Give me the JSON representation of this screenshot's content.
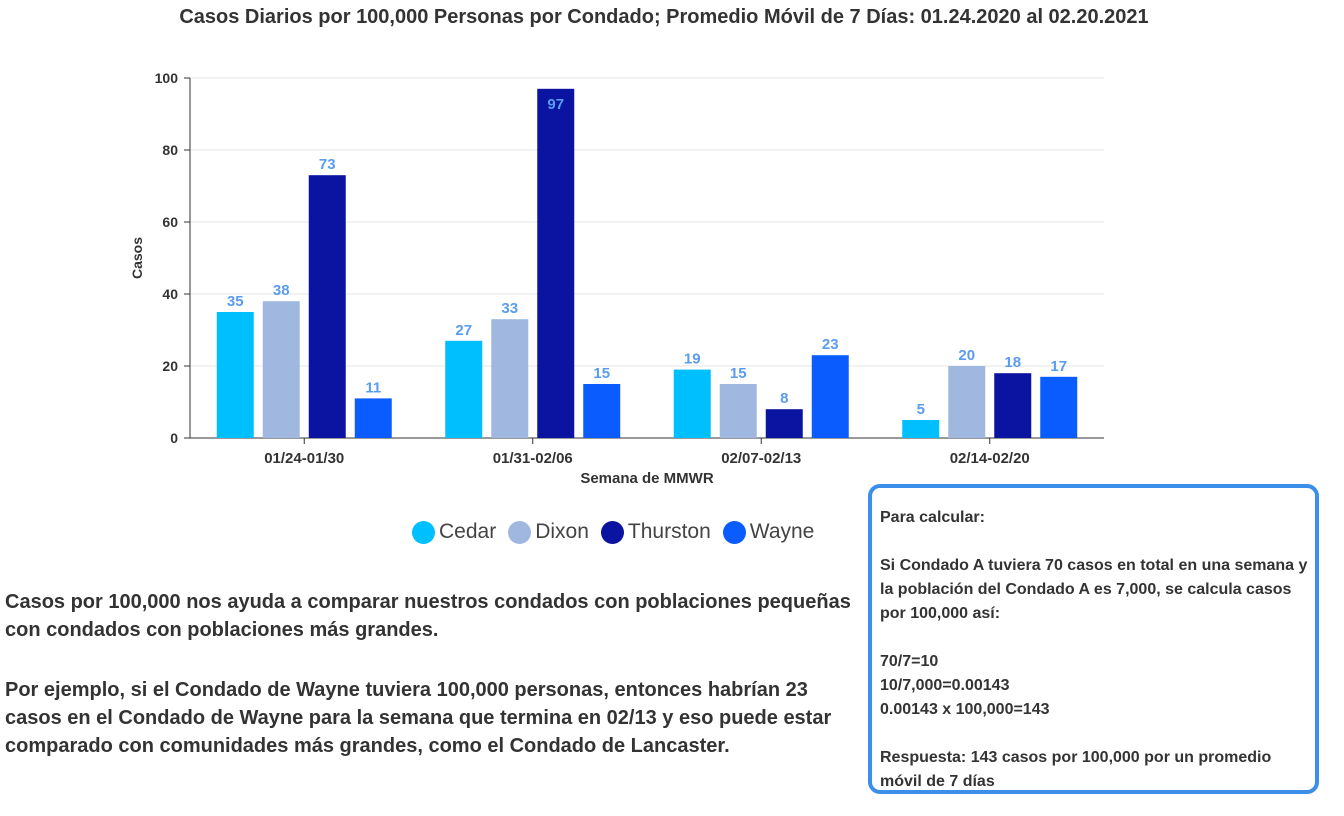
{
  "chart_data": {
    "type": "bar",
    "title": "Casos Diarios por 100,000 Personas por Condado; Promedio Móvil de 7 Días: 01.24.2020 al 02.20.2021",
    "xlabel": "Semana de MMWR",
    "ylabel": "Casos",
    "ylim": [
      0,
      100
    ],
    "yticks": [
      0,
      20,
      40,
      60,
      80,
      100
    ],
    "grid": true,
    "legend_position": "bottom",
    "categories": [
      "01/24-01/30",
      "01/31-02/06",
      "02/07-02/13",
      "02/14-02/20"
    ],
    "series": [
      {
        "name": "Cedar",
        "color": "#00bfff",
        "values": [
          35,
          27,
          19,
          5
        ]
      },
      {
        "name": "Dixon",
        "color": "#a0b8e0",
        "values": [
          38,
          33,
          15,
          20
        ]
      },
      {
        "name": "Thurston",
        "color": "#0a14a0",
        "values": [
          73,
          97,
          8,
          18
        ]
      },
      {
        "name": "Wayne",
        "color": "#0a5cff",
        "values": [
          11,
          15,
          23,
          17
        ]
      }
    ],
    "label_color": "#5a9cf0"
  },
  "notes": {
    "paragraph1": "Casos por 100,000 nos ayuda a comparar nuestros condados con poblaciones pequeñas con condados con poblaciones más grandes.",
    "paragraph2": "Por ejemplo, si el Condado de Wayne tuviera 100,000 personas, entonces habrían 23 casos en el Condado de Wayne para la semana que termina en 02/13 y eso puede estar comparado con comunidades más grandes, como el Condado de Lancaster."
  },
  "calc_box": {
    "heading": "Para calcular:",
    "intro": "Si Condado A tuviera 70 casos en total en una semana y la población del Condado A es 7,000, se calcula casos por 100,000 así:",
    "step1": "70/7=10",
    "step2": "10/7,000=0.00143",
    "step3": "0.00143 x 100,000=143",
    "answer": "Respuesta: 143 casos por 100,000 por un promedio móvil de 7 días"
  }
}
